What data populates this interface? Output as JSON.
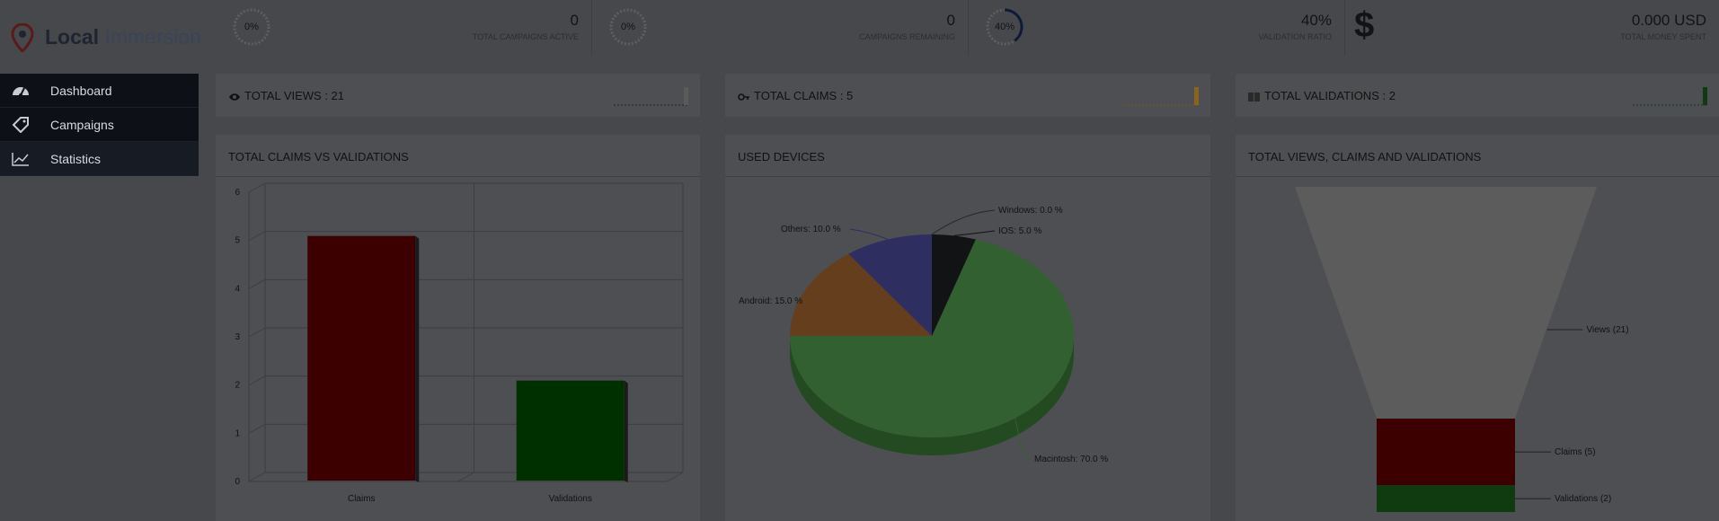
{
  "brand": {
    "name_bold": "Local",
    "name_light": "Immersion"
  },
  "nav": {
    "items": [
      {
        "label": "Dashboard",
        "icon": "dashboard-icon"
      },
      {
        "label": "Campaigns",
        "icon": "tag-icon"
      },
      {
        "label": "Statistics",
        "icon": "line-chart-icon"
      }
    ],
    "active": "Statistics"
  },
  "stats": [
    {
      "gauge": "0%",
      "value": "0",
      "label": "TOTAL CAMPAIGNS ACTIVE",
      "percent": 0
    },
    {
      "gauge": "0%",
      "value": "0",
      "label": "CAMPAIGNS REMAINING",
      "percent": 0
    },
    {
      "gauge": "40%",
      "value": "40%",
      "label": "VALIDATION RATIO",
      "percent": 40
    },
    {
      "gauge": "",
      "value": "0.000 USD",
      "label": "TOTAL MONEY SPENT",
      "icon": "dollar-icon"
    }
  ],
  "summary": [
    {
      "label": "TOTAL VIEWS : 21",
      "icon": "eye-icon",
      "color": "#5a5a5a"
    },
    {
      "label": "TOTAL CLAIMS : 5",
      "icon": "key-icon",
      "color": "#8a6418"
    },
    {
      "label": "TOTAL VALIDATIONS : 2",
      "icon": "barcode-icon",
      "color": "#123a12"
    }
  ],
  "panels": {
    "claims_vs_validations": "TOTAL CLAIMS VS VALIDATIONS",
    "used_devices": "USED DEVICES",
    "funnel": "TOTAL VIEWS, CLAIMS AND VALIDATIONS"
  },
  "chart_data": [
    {
      "type": "bar",
      "title": "TOTAL CLAIMS VS VALIDATIONS",
      "categories": [
        "Claims",
        "Validations"
      ],
      "values": [
        5,
        2
      ],
      "colors": [
        "#3c0000",
        "#003000"
      ],
      "ylim": [
        0,
        6
      ],
      "yticks": [
        0,
        1,
        2,
        3,
        4,
        5,
        6
      ]
    },
    {
      "type": "pie",
      "title": "USED DEVICES",
      "labels": [
        "Macintosh: 70.0 %",
        "Android: 15.0 %",
        "Others: 10.0 %",
        "Windows: 0.0 %",
        "IOS: 5.0 %"
      ],
      "values": [
        70,
        15,
        10,
        0,
        5
      ],
      "colors": [
        "#336030",
        "#653e1e",
        "#2e2e60",
        "#1c2d2a",
        "#121314"
      ]
    },
    {
      "type": "funnel",
      "title": "TOTAL VIEWS, CLAIMS AND VALIDATIONS",
      "labels": [
        "Views (21)",
        "Claims (5)",
        "Validations (2)"
      ],
      "values": [
        21,
        5,
        2
      ],
      "colors": [
        "#5c5c5c",
        "#3c0000",
        "#103a10"
      ]
    }
  ]
}
